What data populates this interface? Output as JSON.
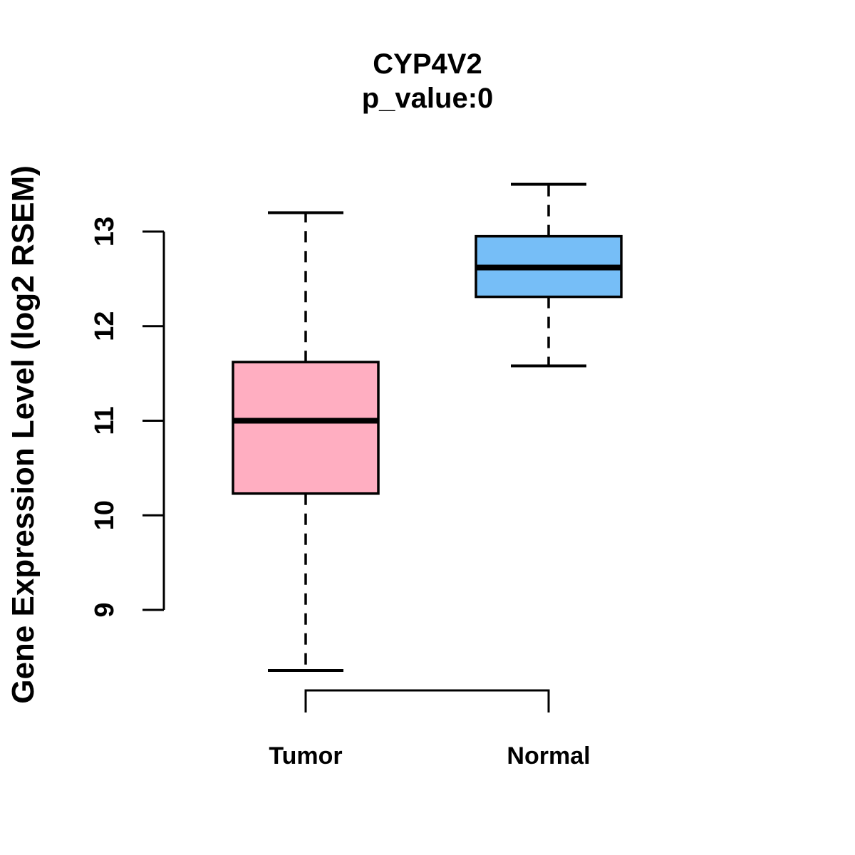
{
  "chart_data": {
    "type": "boxplot",
    "title": "CYP4V2",
    "subtitle": "p_value:0",
    "ylabel": "Gene Expression Level (log2 RSEM)",
    "xlabel": "",
    "categories": [
      "Tumor",
      "Normal"
    ],
    "series": [
      {
        "name": "Tumor",
        "color": "#FFAEC1",
        "whisker_low": 8.36,
        "q1": 10.23,
        "median": 11.0,
        "q3": 11.62,
        "whisker_high": 13.2
      },
      {
        "name": "Normal",
        "color": "#76BEF7",
        "whisker_low": 11.58,
        "q1": 12.31,
        "median": 12.62,
        "q3": 12.95,
        "whisker_high": 13.5
      }
    ],
    "y_ticks": [
      9,
      10,
      11,
      12,
      13
    ],
    "ylim": [
      8.2,
      13.6
    ],
    "grid": false,
    "legend": "none",
    "line_color": "#000000",
    "whisker_style": "dashed",
    "background": "#FFFFFF"
  }
}
